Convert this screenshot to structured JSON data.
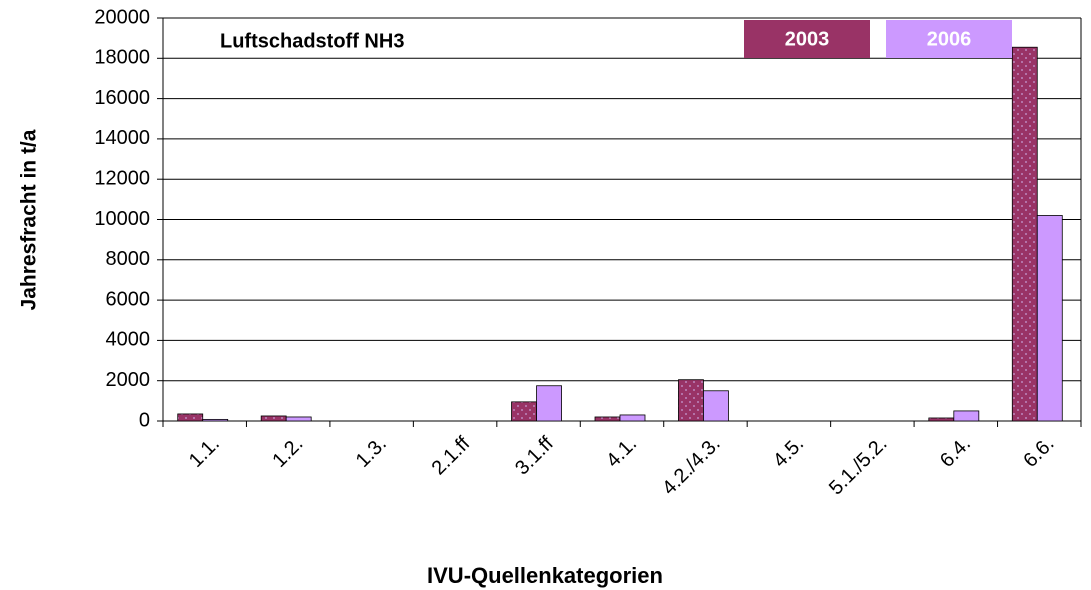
{
  "chart_data": {
    "type": "bar",
    "title": "Luftschadstoff NH3",
    "x_label": "IVU-Quellenkategorien",
    "y_label": "Jahresfracht in t/a",
    "categories": [
      "1.1.",
      "1.2.",
      "1.3.",
      "2.1.ff",
      "3.1.ff",
      "4.1.",
      "4.2./4.3.",
      "4.5.",
      "5.1./5.2.",
      "6.4.",
      "6.6."
    ],
    "series": [
      {
        "name": "2003",
        "color": "#993366",
        "values": [
          350,
          250,
          0,
          0,
          950,
          200,
          2050,
          0,
          0,
          150,
          18550
        ]
      },
      {
        "name": "2006",
        "color": "#cc99ff",
        "values": [
          80,
          200,
          0,
          0,
          1750,
          300,
          1500,
          0,
          0,
          500,
          10200
        ]
      }
    ],
    "ylim": [
      0,
      20000
    ],
    "yticks": [
      0,
      2000,
      4000,
      6000,
      8000,
      10000,
      12000,
      14000,
      16000,
      18000,
      20000
    ],
    "grid": true,
    "legend": "top-right"
  }
}
